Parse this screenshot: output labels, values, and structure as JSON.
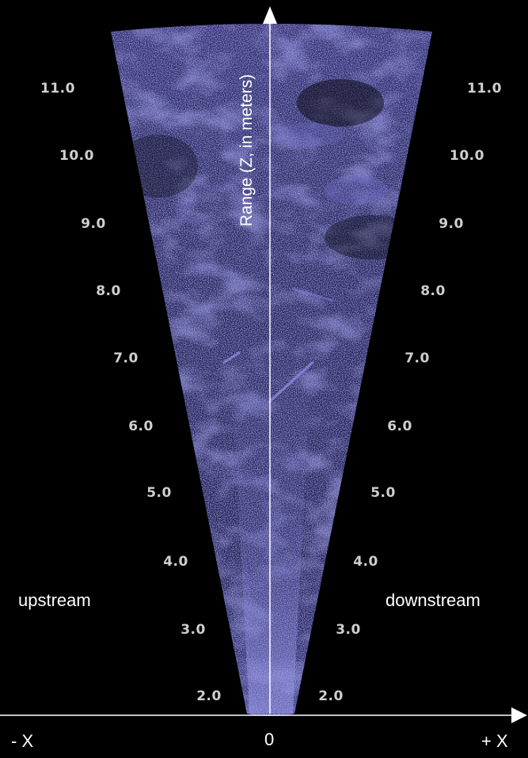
{
  "image": {
    "colors": {
      "background": "#000000",
      "echo": "#5c5ab4",
      "axis": "#ffffff",
      "tick_text": "#cfcfcf"
    },
    "range_axis_label": "Range (Z, in meters)",
    "range_ticks_left": [
      "11.0",
      "10.0",
      "9.0",
      "8.0",
      "7.0",
      "6.0",
      "5.0",
      "4.0",
      "3.0",
      "2.0"
    ],
    "range_ticks_right": [
      "11.0",
      "10.0",
      "9.0",
      "8.0",
      "7.0",
      "6.0",
      "5.0",
      "4.0",
      "3.0",
      "2.0"
    ],
    "side_labels": {
      "left": "upstream",
      "right": "downstream"
    },
    "x_axis_labels": {
      "left": "- X",
      "center": "0",
      "right": "+ X"
    }
  }
}
